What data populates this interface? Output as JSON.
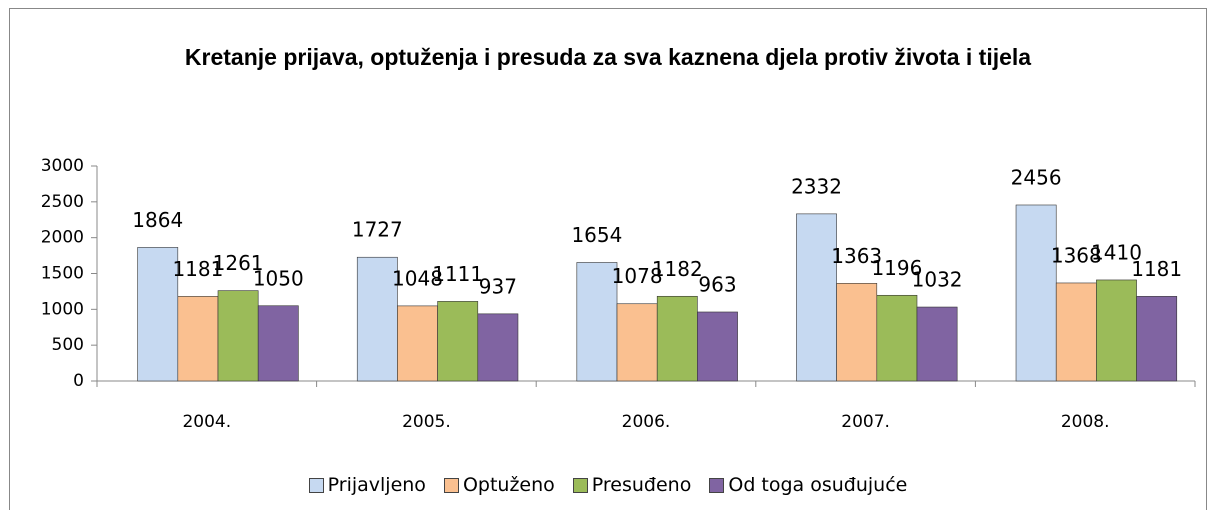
{
  "chart_data": {
    "type": "bar",
    "title": "Kretanje prijava, optuženja i presuda za sva kaznena djela protiv života i tijela",
    "categories": [
      "2004.",
      "2005.",
      "2006.",
      "2007.",
      "2008."
    ],
    "series": [
      {
        "name": "Prijavljeno",
        "color": "#c6d9f1",
        "values": [
          1864,
          1727,
          1654,
          2332,
          2456
        ]
      },
      {
        "name": "Optuženo",
        "color": "#fac090",
        "values": [
          1181,
          1048,
          1078,
          1363,
          1368
        ]
      },
      {
        "name": "Presuđeno",
        "color": "#9bbb59",
        "values": [
          1261,
          1111,
          1182,
          1196,
          1410
        ]
      },
      {
        "name": "Od toga osuđujuće",
        "color": "#8064a2",
        "values": [
          1050,
          937,
          963,
          1032,
          1181
        ]
      }
    ],
    "ylim": [
      0,
      3000
    ],
    "yticks": [
      0,
      500,
      1000,
      1500,
      2000,
      2500,
      3000
    ],
    "legend": "bottom"
  }
}
